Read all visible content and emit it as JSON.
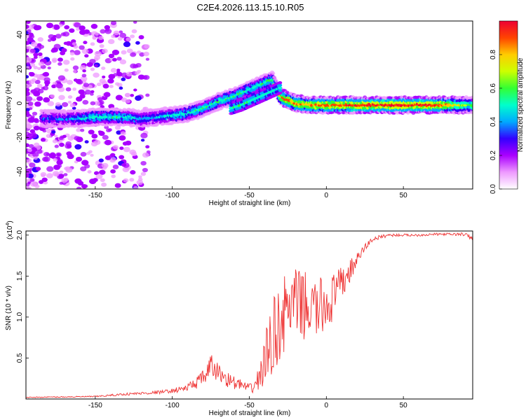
{
  "figure_title": "C2E4.2026.113.15.10.R05",
  "chart_data": [
    {
      "type": "heatmap",
      "xlabel": "Height of straight line (km)",
      "ylabel": "Frequency (Hz)",
      "xlim": [
        -195,
        95
      ],
      "ylim": [
        -50,
        48
      ],
      "xticks": [
        -150,
        -100,
        -50,
        0,
        50
      ],
      "yticks": [
        40,
        20,
        0,
        -20,
        -40
      ],
      "xtick_labels": [
        "-150",
        "-100",
        "-50",
        "0",
        "50"
      ],
      "ytick_labels": [
        "40",
        "20",
        "0",
        "-20",
        "-40"
      ],
      "colorbar": {
        "label": "Normalized spectral amplitude",
        "range": [
          0,
          1
        ],
        "ticks": [
          0.0,
          0.2,
          0.4,
          0.6,
          0.8
        ],
        "tick_labels": [
          "0.0",
          "0.2",
          "0.4",
          "0.6",
          "0.8"
        ],
        "colors": [
          "#ffffff",
          "#ee99ff",
          "#aa00ff",
          "#3300ff",
          "#00aaff",
          "#00ffcc",
          "#33ff33",
          "#ccff00",
          "#ffcc00",
          "#ff4400",
          "#ee0033"
        ]
      },
      "ridge": {
        "x": [
          -185,
          -170,
          -160,
          -150,
          -140,
          -130,
          -120,
          -110,
          -100,
          -90,
          -80,
          -70,
          -60,
          -50,
          -45,
          -40,
          -35,
          -30,
          -25,
          -20,
          -10,
          0,
          10,
          30,
          50,
          70,
          95
        ],
        "y": [
          -9,
          -9,
          -9,
          -8,
          -8,
          -8,
          -9,
          -8,
          -7,
          -6,
          -3,
          1,
          4,
          8,
          10,
          12,
          14,
          4,
          2,
          0,
          -1,
          -1,
          -1,
          -1,
          -1,
          -1,
          -1
        ],
        "amplitude": [
          0.3,
          0.35,
          0.45,
          0.5,
          0.5,
          0.5,
          0.4,
          0.4,
          0.45,
          0.5,
          0.55,
          0.55,
          0.55,
          0.5,
          0.5,
          0.55,
          0.55,
          0.8,
          0.9,
          0.85,
          0.85,
          0.9,
          0.9,
          0.95,
          0.95,
          0.95,
          0.6
        ]
      },
      "branch": {
        "x": [
          -62,
          -55,
          -50,
          -45,
          -40,
          -35,
          -30
        ],
        "y": [
          -3,
          -1,
          1,
          3,
          5,
          7,
          9
        ],
        "amplitude": [
          0.5,
          0.55,
          0.55,
          0.55,
          0.5,
          0.5,
          0.45
        ]
      }
    },
    {
      "type": "line",
      "xlabel": "Height of straight line (km)",
      "ylabel": "SNR (10 * v/v)",
      "multiplier": "(x10",
      "multiplier_exp": "4",
      "multiplier_close": ")",
      "xlim": [
        -195,
        95
      ],
      "ylim": [
        0,
        2.05
      ],
      "xticks": [
        -150,
        -100,
        -50,
        0,
        50
      ],
      "yticks": [
        0.5,
        1.0,
        1.5,
        2.0
      ],
      "xtick_labels": [
        "-150",
        "-100",
        "-50",
        "0",
        "50"
      ],
      "ytick_labels": [
        "0.5",
        "1.0",
        "1.5",
        "2.0"
      ],
      "color": "#ee3333",
      "envelope": {
        "x": [
          -195,
          -150,
          -130,
          -110,
          -100,
          -90,
          -80,
          -75,
          -70,
          -65,
          -60,
          -55,
          -50,
          -45,
          -40,
          -35,
          -30,
          -25,
          -20,
          -15,
          -10,
          -5,
          0,
          5,
          10,
          15,
          20,
          25,
          30,
          40,
          50,
          60,
          70,
          80,
          90,
          95
        ],
        "y": [
          0.02,
          0.03,
          0.06,
          0.08,
          0.1,
          0.14,
          0.25,
          0.4,
          0.32,
          0.25,
          0.2,
          0.17,
          0.12,
          0.2,
          0.45,
          0.75,
          0.95,
          1.1,
          1.15,
          1.15,
          1.1,
          1.1,
          1.15,
          1.25,
          1.4,
          1.55,
          1.7,
          1.85,
          1.95,
          2.0,
          2.0,
          2.0,
          2.01,
          2.01,
          2.01,
          1.95
        ],
        "noise": [
          0.005,
          0.008,
          0.015,
          0.02,
          0.025,
          0.05,
          0.1,
          0.15,
          0.12,
          0.1,
          0.08,
          0.07,
          0.06,
          0.12,
          0.35,
          0.45,
          0.5,
          0.45,
          0.45,
          0.42,
          0.4,
          0.38,
          0.35,
          0.3,
          0.22,
          0.15,
          0.08,
          0.05,
          0.03,
          0.02,
          0.015,
          0.015,
          0.015,
          0.015,
          0.02,
          0.03
        ]
      }
    }
  ]
}
